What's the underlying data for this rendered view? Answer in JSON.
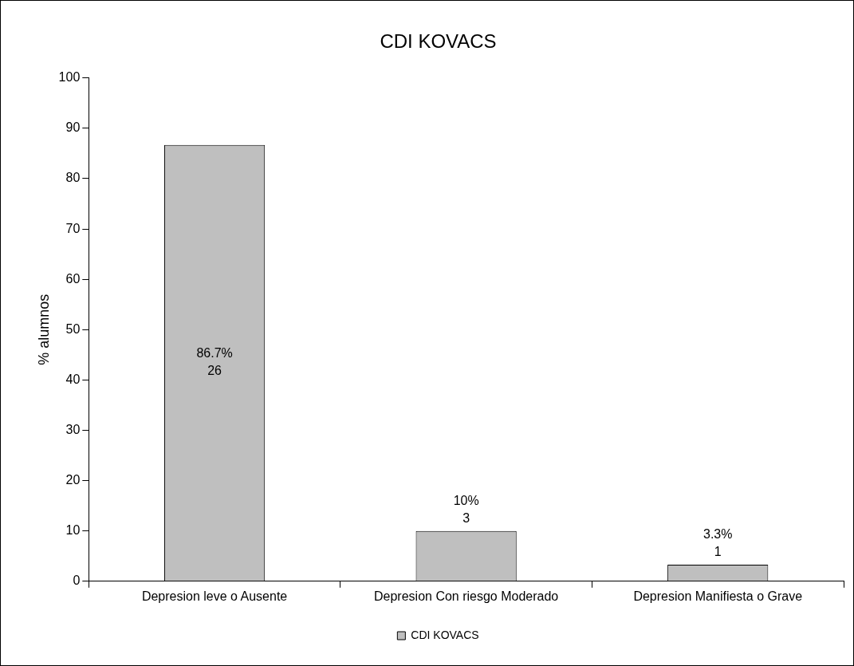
{
  "chart_data": {
    "type": "bar",
    "title": "CDI KOVACS",
    "ylabel": "% alumnos",
    "categories": [
      "Depresion leve o Ausente",
      "Depresion Con riesgo Moderado",
      "Depresion Manifiesta o Grave"
    ],
    "series": [
      {
        "name": "CDI KOVACS",
        "color": "#bfbfbf",
        "values": [
          86.7,
          10,
          3.3
        ],
        "value_labels": [
          "86.7%\n26",
          "10%\n3",
          "3.3%\n1"
        ]
      }
    ],
    "ylim": [
      0,
      100
    ],
    "yticks": [
      0,
      10,
      20,
      30,
      40,
      50,
      60,
      70,
      80,
      90,
      100
    ],
    "grid": false,
    "legend": "bottom"
  }
}
